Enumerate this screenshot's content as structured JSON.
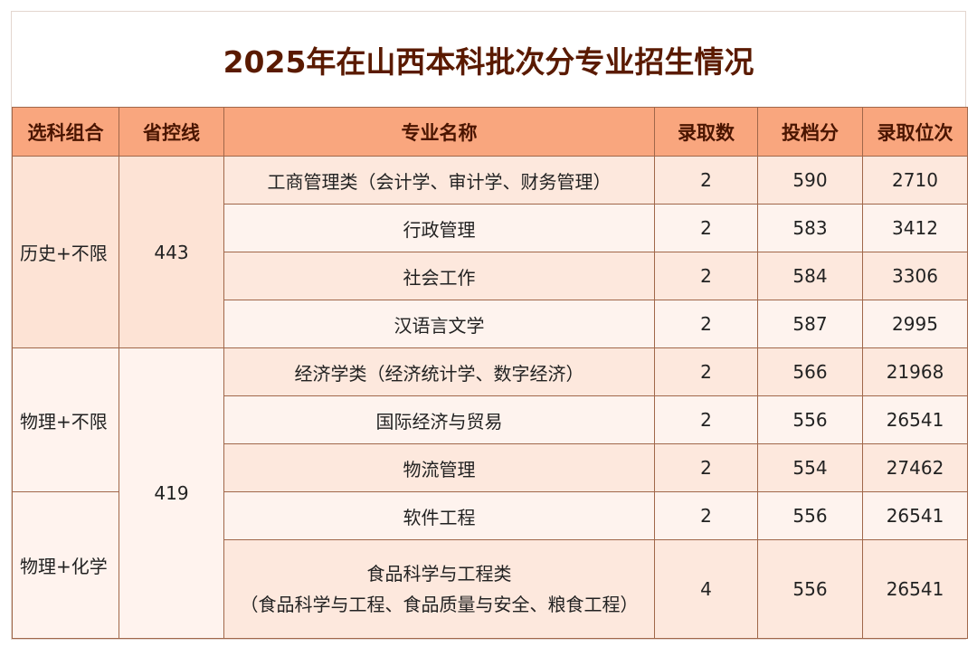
{
  "title": "2025年在山西本科批次分专业招生情况",
  "table": {
    "headers": [
      "选科组合",
      "省控线",
      "专业名称",
      "录取数",
      "投档分",
      "录取位次"
    ],
    "rows": [
      {
        "combo": "历史+不限",
        "line": 443,
        "major": "工商管理类（会计学、审计学、财务管理）",
        "count": 2,
        "score": 590,
        "rank": 2710
      },
      {
        "major": "行政管理",
        "count": 2,
        "score": 583,
        "rank": 3412
      },
      {
        "major": "社会工作",
        "count": 2,
        "score": 584,
        "rank": 3306
      },
      {
        "major": "汉语言文学",
        "count": 2,
        "score": 587,
        "rank": 2995
      },
      {
        "combo": "物理+不限",
        "line": 419,
        "major": "经济学类（经济统计学、数字经济）",
        "count": 2,
        "score": 566,
        "rank": 21968
      },
      {
        "major": "国际经济与贸易",
        "count": 2,
        "score": 556,
        "rank": 26541
      },
      {
        "major": "物流管理",
        "count": 2,
        "score": 554,
        "rank": 27462
      },
      {
        "combo": "物理+化学",
        "major": "软件工程",
        "count": 2,
        "score": 556,
        "rank": 26541
      },
      {
        "major": [
          "食品科学与工程类",
          "（食品科学与工程、食品质量与安全、粮食工程）"
        ],
        "count": 4,
        "score": 556,
        "rank": 26541
      }
    ]
  }
}
